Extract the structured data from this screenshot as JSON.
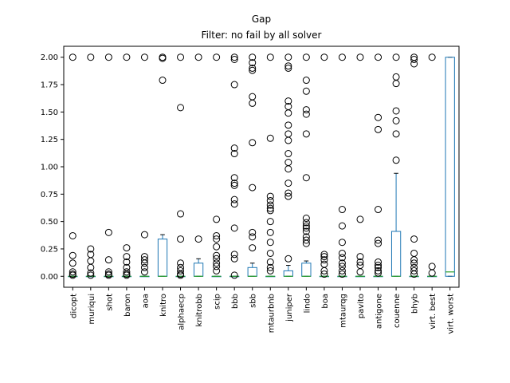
{
  "chart_data": {
    "type": "box",
    "title": "Gap",
    "subtitle": "Filter: no fail by all solver",
    "xlabel": "",
    "ylabel": "",
    "ylim": [
      -0.1,
      2.1
    ],
    "yticks": [
      0.0,
      0.25,
      0.5,
      0.75,
      1.0,
      1.25,
      1.5,
      1.75,
      2.0
    ],
    "ytick_labels": [
      "0.00",
      "0.25",
      "0.50",
      "0.75",
      "1.00",
      "1.25",
      "1.50",
      "1.75",
      "2.00"
    ],
    "grid": false,
    "box_color": "#1f77b4",
    "median_color": "#2ca02c",
    "categories": [
      "dicopt",
      "muriqui",
      "shot",
      "baron",
      "aoa",
      "knitro",
      "alphaecp",
      "knitrobb",
      "scip",
      "bbb",
      "sbb",
      "mtaurbnb",
      "juniper",
      "lindo",
      "boa",
      "mtaurqg",
      "pavito",
      "antigone",
      "couenne",
      "bhyb",
      "virt. best",
      "virt. worst"
    ],
    "boxes": [
      {
        "q1": 0,
        "median": 0,
        "q3": 0,
        "whislo": 0,
        "whishi": 0,
        "fliers": [
          0.37,
          0.19,
          0.12,
          0.04,
          0.02,
          0.01,
          2.0
        ]
      },
      {
        "q1": 0,
        "median": 0,
        "q3": 0,
        "whislo": 0,
        "whishi": 0,
        "fliers": [
          0.25,
          0.2,
          0.14,
          0.08,
          0.03,
          0.01,
          2.0
        ]
      },
      {
        "q1": 0,
        "median": 0,
        "q3": 0,
        "whislo": 0,
        "whishi": 0,
        "fliers": [
          0.4,
          0.15,
          0.04,
          0.02,
          0.01,
          2.0
        ]
      },
      {
        "q1": 0,
        "median": 0,
        "q3": 0,
        "whislo": 0,
        "whishi": 0,
        "fliers": [
          0.26,
          0.18,
          0.13,
          0.08,
          0.04,
          0.02,
          0.01,
          2.0
        ]
      },
      {
        "q1": 0,
        "median": 0,
        "q3": 0,
        "whislo": 0,
        "whishi": 0,
        "fliers": [
          0.38,
          0.18,
          0.15,
          0.12,
          0.08,
          0.04,
          2.0
        ]
      },
      {
        "q1": 0,
        "median": 0,
        "q3": 0.34,
        "whislo": 0,
        "whishi": 0.38,
        "fliers": [
          1.79,
          1.99,
          2.0
        ]
      },
      {
        "q1": 0,
        "median": 0,
        "q3": 0,
        "whislo": 0,
        "whishi": 0,
        "fliers": [
          1.54,
          0.57,
          0.34,
          0.12,
          0.08,
          0.05,
          0.02,
          0.01,
          2.0
        ]
      },
      {
        "q1": 0,
        "median": 0,
        "q3": 0.12,
        "whislo": 0,
        "whishi": 0.16,
        "fliers": [
          0.34,
          2.0
        ]
      },
      {
        "q1": 0,
        "median": 0,
        "q3": 0,
        "whislo": 0,
        "whishi": 0,
        "fliers": [
          0.52,
          0.37,
          0.34,
          0.27,
          0.19,
          0.16,
          0.12,
          0.09,
          0.05,
          2.0
        ]
      },
      {
        "q1": 0,
        "median": 0,
        "q3": 0,
        "whislo": 0,
        "whishi": 0,
        "fliers": [
          1.75,
          1.17,
          1.12,
          0.9,
          0.85,
          0.83,
          0.7,
          0.66,
          0.44,
          0.2,
          0.16,
          0.01,
          1.98,
          2.0
        ]
      },
      {
        "q1": 0,
        "median": 0,
        "q3": 0.08,
        "whislo": 0,
        "whishi": 0.12,
        "fliers": [
          1.95,
          1.9,
          1.88,
          1.64,
          1.58,
          1.22,
          0.81,
          0.4,
          0.36,
          0.26,
          2.0
        ]
      },
      {
        "q1": 0,
        "median": 0,
        "q3": 0,
        "whislo": 0,
        "whishi": 0,
        "fliers": [
          1.26,
          0.73,
          0.69,
          0.65,
          0.62,
          0.6,
          0.5,
          0.4,
          0.31,
          0.21,
          0.13,
          0.08,
          0.05,
          2.0
        ]
      },
      {
        "q1": 0,
        "median": 0,
        "q3": 0.05,
        "whislo": 0,
        "whishi": 0.1,
        "fliers": [
          1.92,
          1.9,
          1.6,
          1.55,
          1.49,
          1.38,
          1.3,
          1.24,
          1.12,
          1.04,
          0.98,
          0.85,
          0.76,
          0.73,
          0.16,
          2.0
        ]
      },
      {
        "q1": 0,
        "median": 0,
        "q3": 0.12,
        "whislo": 0,
        "whishi": 0.14,
        "fliers": [
          1.79,
          1.69,
          1.52,
          1.48,
          1.3,
          0.9,
          0.53,
          0.49,
          0.46,
          0.44,
          0.41,
          0.36,
          0.33,
          0.3,
          2.0
        ]
      },
      {
        "q1": 0,
        "median": 0,
        "q3": 0,
        "whislo": 0,
        "whishi": 0,
        "fliers": [
          0.2,
          0.18,
          0.15,
          0.11,
          0.05,
          0.02,
          2.0
        ]
      },
      {
        "q1": 0,
        "median": 0,
        "q3": 0,
        "whislo": 0,
        "whishi": 0,
        "fliers": [
          0.61,
          0.46,
          0.31,
          0.21,
          0.17,
          0.12,
          0.09,
          0.05,
          0.02,
          2.0
        ]
      },
      {
        "q1": 0,
        "median": 0,
        "q3": 0,
        "whislo": 0,
        "whishi": 0,
        "fliers": [
          0.52,
          0.18,
          0.13,
          0.1,
          0.04,
          2.0
        ]
      },
      {
        "q1": 0,
        "median": 0,
        "q3": 0,
        "whislo": 0,
        "whishi": 0,
        "fliers": [
          1.45,
          1.34,
          0.61,
          0.33,
          0.3,
          0.13,
          0.1,
          0.08,
          0.05,
          0.03,
          2.0
        ]
      },
      {
        "q1": 0,
        "median": 0,
        "q3": 0.41,
        "whislo": 0,
        "whishi": 0.94,
        "fliers": [
          1.82,
          1.76,
          1.51,
          1.42,
          1.3,
          1.06,
          2.0
        ]
      },
      {
        "q1": 0,
        "median": 0,
        "q3": 0,
        "whislo": 0,
        "whishi": 0,
        "fliers": [
          1.98,
          1.94,
          0.34,
          0.21,
          0.15,
          0.12,
          0.08,
          0.05,
          0.02,
          2.0
        ]
      },
      {
        "q1": 0,
        "median": 0,
        "q3": 0,
        "whislo": 0,
        "whishi": 0,
        "fliers": [
          0.09,
          0.03,
          2.0
        ]
      },
      {
        "q1": 0,
        "median": 0.04,
        "q3": 2.0,
        "whislo": 0,
        "whishi": 2.0,
        "fliers": []
      }
    ]
  }
}
